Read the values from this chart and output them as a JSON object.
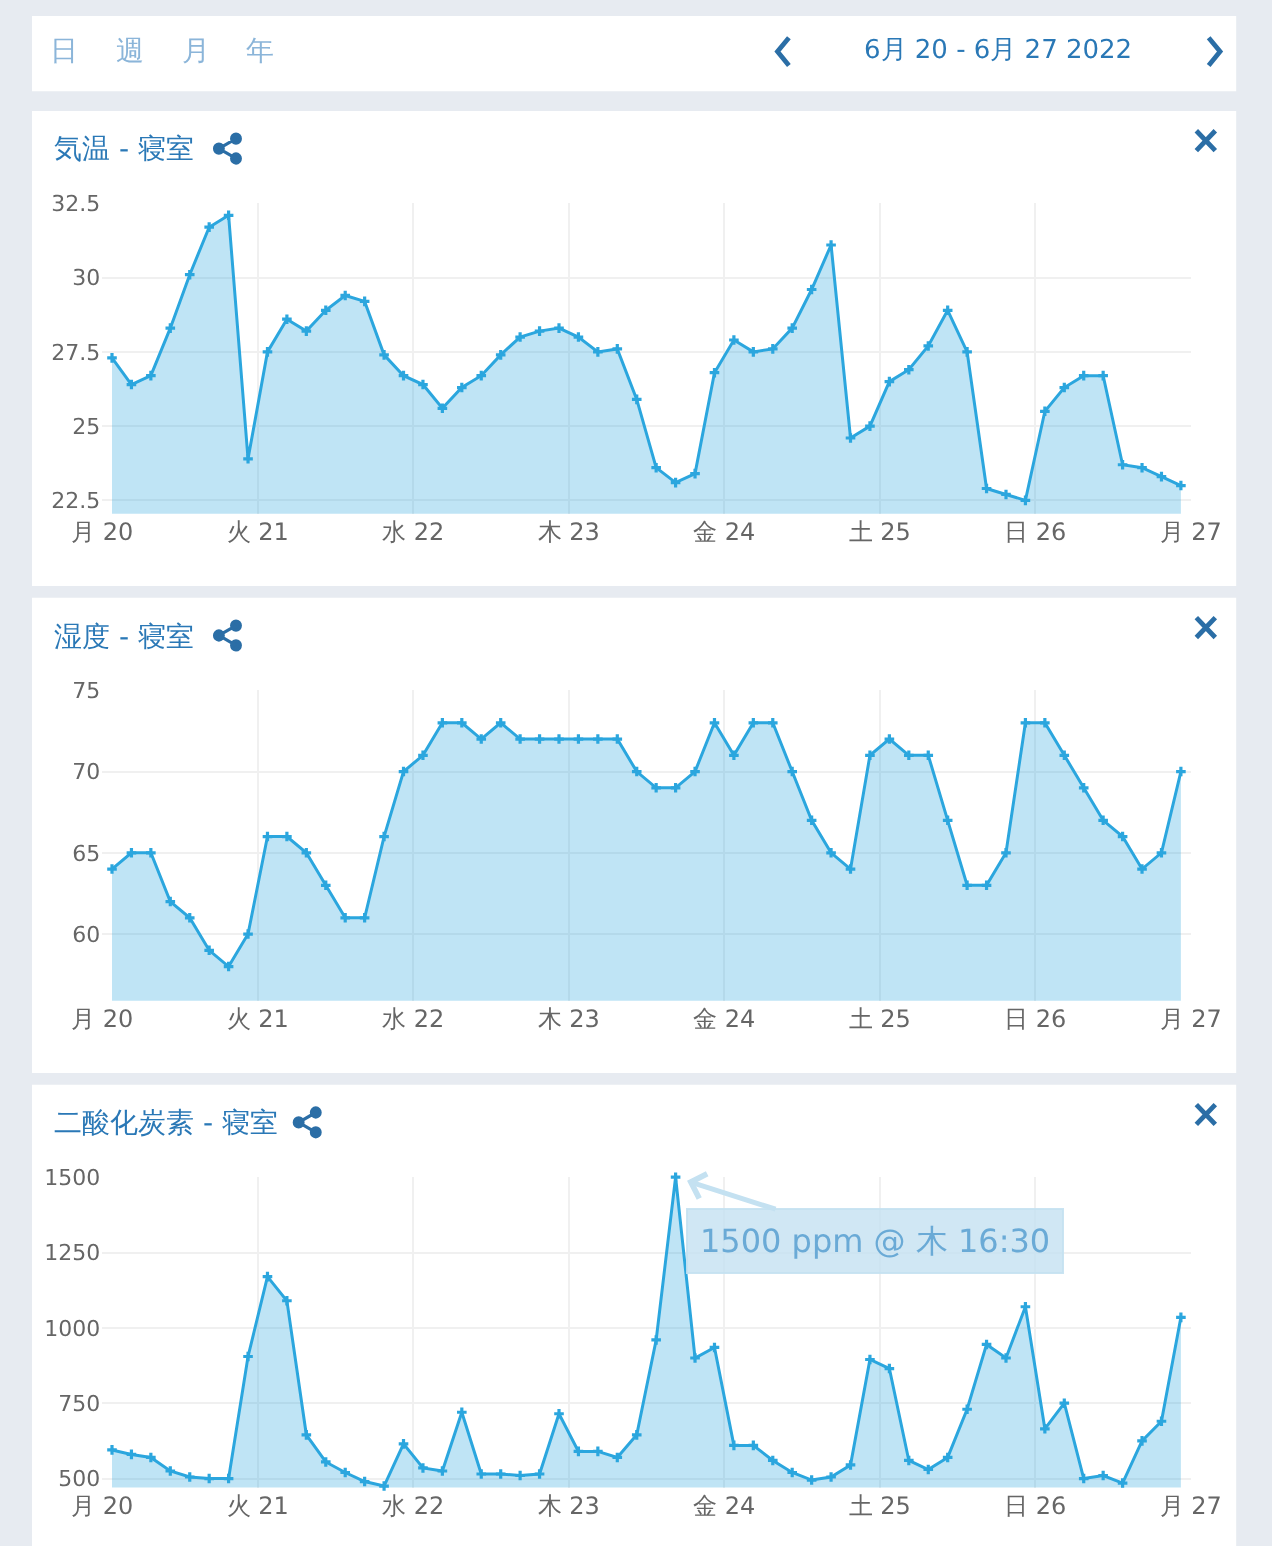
{
  "chart_data": [
    {
      "type": "other",
      "title": "6月 20 - 6月 27 2022",
      "annotations": [
        "日",
        "週",
        "月",
        "年"
      ]
    },
    {
      "type": "area",
      "title": "気温 - 寝室",
      "x": [
        "2022-06-20T01:30",
        "2022-06-20T04:30",
        "2022-06-20T07:30",
        "2022-06-20T10:30",
        "2022-06-20T13:30",
        "2022-06-20T16:30",
        "2022-06-20T19:30",
        "2022-06-20T22:30",
        "2022-06-21T01:30",
        "2022-06-21T04:30",
        "2022-06-21T07:30",
        "2022-06-21T10:30",
        "2022-06-21T13:30",
        "2022-06-21T16:30",
        "2022-06-21T19:30",
        "2022-06-21T22:30",
        "2022-06-22T01:30",
        "2022-06-22T04:30",
        "2022-06-22T07:30",
        "2022-06-22T10:30",
        "2022-06-22T13:30",
        "2022-06-22T16:30",
        "2022-06-22T19:30",
        "2022-06-22T22:30",
        "2022-06-23T01:30",
        "2022-06-23T04:30",
        "2022-06-23T07:30",
        "2022-06-23T10:30",
        "2022-06-23T13:30",
        "2022-06-23T16:30",
        "2022-06-23T19:30",
        "2022-06-23T22:30",
        "2022-06-24T01:30",
        "2022-06-24T04:30",
        "2022-06-24T07:30",
        "2022-06-24T10:30",
        "2022-06-24T13:30",
        "2022-06-24T16:30",
        "2022-06-24T19:30",
        "2022-06-24T22:30",
        "2022-06-25T01:30",
        "2022-06-25T04:30",
        "2022-06-25T07:30",
        "2022-06-25T10:30",
        "2022-06-25T13:30",
        "2022-06-25T16:30",
        "2022-06-25T19:30",
        "2022-06-25T22:30",
        "2022-06-26T01:30",
        "2022-06-26T04:30",
        "2022-06-26T07:30",
        "2022-06-26T10:30",
        "2022-06-26T13:30",
        "2022-06-26T16:30",
        "2022-06-26T19:30",
        "2022-06-26T22:30"
      ],
      "series": [
        {
          "color": "#2ba6de",
          "values": [
            27.3,
            26.4,
            26.7,
            28.3,
            30.1,
            31.7,
            32.1,
            23.9,
            27.5,
            28.6,
            28.2,
            28.9,
            29.4,
            29.2,
            27.4,
            26.7,
            26.4,
            25.6,
            26.3,
            26.7,
            27.4,
            28.0,
            28.2,
            28.3,
            28.0,
            27.5,
            27.6,
            25.9,
            23.6,
            23.1,
            23.4,
            26.8,
            27.9,
            27.5,
            27.6,
            28.3,
            29.6,
            31.1,
            24.6,
            25.0,
            26.5,
            26.9,
            27.7,
            28.9,
            27.5,
            22.9,
            22.7,
            22.5,
            25.5,
            26.3,
            26.7,
            26.7,
            23.7,
            23.6,
            23.3,
            23.0
          ]
        }
      ],
      "xlim": [
        "2022-06-20",
        "2022-06-27"
      ],
      "xticks": [
        {
          "value": "2022-06-20",
          "label": "月 20"
        },
        {
          "value": "2022-06-21",
          "label": "火 21"
        },
        {
          "value": "2022-06-22",
          "label": "水 22"
        },
        {
          "value": "2022-06-23",
          "label": "木 23"
        },
        {
          "value": "2022-06-24",
          "label": "金 24"
        },
        {
          "value": "2022-06-25",
          "label": "土 25"
        },
        {
          "value": "2022-06-26",
          "label": "日 26"
        },
        {
          "value": "2022-06-27",
          "label": "月 27"
        }
      ],
      "ylim": [
        22.05,
        32.5
      ],
      "yticks": [
        22.5,
        25,
        27.5,
        30,
        32.5
      ],
      "grid": true,
      "marker": "cross",
      "line_style": "solid"
    },
    {
      "type": "area",
      "title": "湿度 - 寝室",
      "x": [
        "2022-06-20T01:30",
        "2022-06-20T04:30",
        "2022-06-20T07:30",
        "2022-06-20T10:30",
        "2022-06-20T13:30",
        "2022-06-20T16:30",
        "2022-06-20T19:30",
        "2022-06-20T22:30",
        "2022-06-21T01:30",
        "2022-06-21T04:30",
        "2022-06-21T07:30",
        "2022-06-21T10:30",
        "2022-06-21T13:30",
        "2022-06-21T16:30",
        "2022-06-21T19:30",
        "2022-06-21T22:30",
        "2022-06-22T01:30",
        "2022-06-22T04:30",
        "2022-06-22T07:30",
        "2022-06-22T10:30",
        "2022-06-22T13:30",
        "2022-06-22T16:30",
        "2022-06-22T19:30",
        "2022-06-22T22:30",
        "2022-06-23T01:30",
        "2022-06-23T04:30",
        "2022-06-23T07:30",
        "2022-06-23T10:30",
        "2022-06-23T13:30",
        "2022-06-23T16:30",
        "2022-06-23T19:30",
        "2022-06-23T22:30",
        "2022-06-24T01:30",
        "2022-06-24T04:30",
        "2022-06-24T07:30",
        "2022-06-24T10:30",
        "2022-06-24T13:30",
        "2022-06-24T16:30",
        "2022-06-24T19:30",
        "2022-06-24T22:30",
        "2022-06-25T01:30",
        "2022-06-25T04:30",
        "2022-06-25T07:30",
        "2022-06-25T10:30",
        "2022-06-25T13:30",
        "2022-06-25T16:30",
        "2022-06-25T19:30",
        "2022-06-25T22:30",
        "2022-06-26T01:30",
        "2022-06-26T04:30",
        "2022-06-26T07:30",
        "2022-06-26T10:30",
        "2022-06-26T13:30",
        "2022-06-26T16:30",
        "2022-06-26T19:30",
        "2022-06-26T22:30"
      ],
      "series": [
        {
          "color": "#2ba6de",
          "values": [
            64,
            65,
            65,
            62,
            61,
            59,
            58,
            60,
            66,
            66,
            65,
            63,
            61,
            61,
            66,
            70,
            71,
            73,
            73,
            72,
            73,
            72,
            72,
            72,
            72,
            72,
            72,
            70,
            69,
            69,
            70,
            73,
            71,
            73,
            73,
            70,
            67,
            65,
            64,
            71,
            72,
            71,
            71,
            67,
            63,
            63,
            65,
            73,
            73,
            71,
            69,
            67,
            66,
            64,
            65,
            70
          ]
        }
      ],
      "xlim": [
        "2022-06-20",
        "2022-06-27"
      ],
      "xticks": [
        {
          "value": "2022-06-20",
          "label": "月 20"
        },
        {
          "value": "2022-06-21",
          "label": "火 21"
        },
        {
          "value": "2022-06-22",
          "label": "水 22"
        },
        {
          "value": "2022-06-23",
          "label": "木 23"
        },
        {
          "value": "2022-06-24",
          "label": "金 24"
        },
        {
          "value": "2022-06-25",
          "label": "土 25"
        },
        {
          "value": "2022-06-26",
          "label": "日 26"
        },
        {
          "value": "2022-06-27",
          "label": "月 27"
        }
      ],
      "ylim": [
        55.9,
        75
      ],
      "yticks": [
        60,
        65,
        70,
        75
      ],
      "grid": true,
      "marker": "cross",
      "line_style": "solid"
    },
    {
      "type": "area",
      "title": "二酸化炭素 - 寝室",
      "x": [
        "2022-06-20T01:30",
        "2022-06-20T04:30",
        "2022-06-20T07:30",
        "2022-06-20T10:30",
        "2022-06-20T13:30",
        "2022-06-20T16:30",
        "2022-06-20T19:30",
        "2022-06-20T22:30",
        "2022-06-21T01:30",
        "2022-06-21T04:30",
        "2022-06-21T07:30",
        "2022-06-21T10:30",
        "2022-06-21T13:30",
        "2022-06-21T16:30",
        "2022-06-21T19:30",
        "2022-06-21T22:30",
        "2022-06-22T01:30",
        "2022-06-22T04:30",
        "2022-06-22T07:30",
        "2022-06-22T10:30",
        "2022-06-22T13:30",
        "2022-06-22T16:30",
        "2022-06-22T19:30",
        "2022-06-22T22:30",
        "2022-06-23T01:30",
        "2022-06-23T04:30",
        "2022-06-23T07:30",
        "2022-06-23T10:30",
        "2022-06-23T13:30",
        "2022-06-23T16:30",
        "2022-06-23T19:30",
        "2022-06-23T22:30",
        "2022-06-24T01:30",
        "2022-06-24T04:30",
        "2022-06-24T07:30",
        "2022-06-24T10:30",
        "2022-06-24T13:30",
        "2022-06-24T16:30",
        "2022-06-24T19:30",
        "2022-06-24T22:30",
        "2022-06-25T01:30",
        "2022-06-25T04:30",
        "2022-06-25T07:30",
        "2022-06-25T10:30",
        "2022-06-25T13:30",
        "2022-06-25T16:30",
        "2022-06-25T19:30",
        "2022-06-25T22:30",
        "2022-06-26T01:30",
        "2022-06-26T04:30",
        "2022-06-26T07:30",
        "2022-06-26T10:30",
        "2022-06-26T13:30",
        "2022-06-26T16:30",
        "2022-06-26T19:30",
        "2022-06-26T22:30"
      ],
      "series": [
        {
          "color": "#2ba6de",
          "values": [
            595,
            580,
            570,
            525,
            505,
            500,
            500,
            905,
            1170,
            1090,
            645,
            555,
            520,
            490,
            475,
            615,
            535,
            525,
            720,
            515,
            515,
            510,
            515,
            715,
            590,
            590,
            570,
            645,
            960,
            1500,
            900,
            935,
            610,
            610,
            560,
            520,
            495,
            505,
            545,
            895,
            865,
            560,
            530,
            570,
            730,
            945,
            900,
            1070,
            665,
            750,
            500,
            510,
            485,
            625,
            690,
            1035
          ]
        }
      ],
      "xlim": [
        "2022-06-20",
        "2022-06-27"
      ],
      "xticks": [
        {
          "value": "2022-06-20",
          "label": "月 20"
        },
        {
          "value": "2022-06-21",
          "label": "火 21"
        },
        {
          "value": "2022-06-22",
          "label": "水 22"
        },
        {
          "value": "2022-06-23",
          "label": "木 23"
        },
        {
          "value": "2022-06-24",
          "label": "金 24"
        },
        {
          "value": "2022-06-25",
          "label": "土 25"
        },
        {
          "value": "2022-06-26",
          "label": "日 26"
        },
        {
          "value": "2022-06-27",
          "label": "月 27"
        }
      ],
      "ylim": [
        470,
        1500
      ],
      "yticks": [
        500,
        750,
        1000,
        1250,
        1500
      ],
      "grid": true,
      "marker": "cross",
      "line_style": "solid",
      "annotations": [
        {
          "text": "1500 ppm @ 木 16:30",
          "x": "2022-06-23T16:30",
          "y": 1500
        }
      ]
    }
  ]
}
